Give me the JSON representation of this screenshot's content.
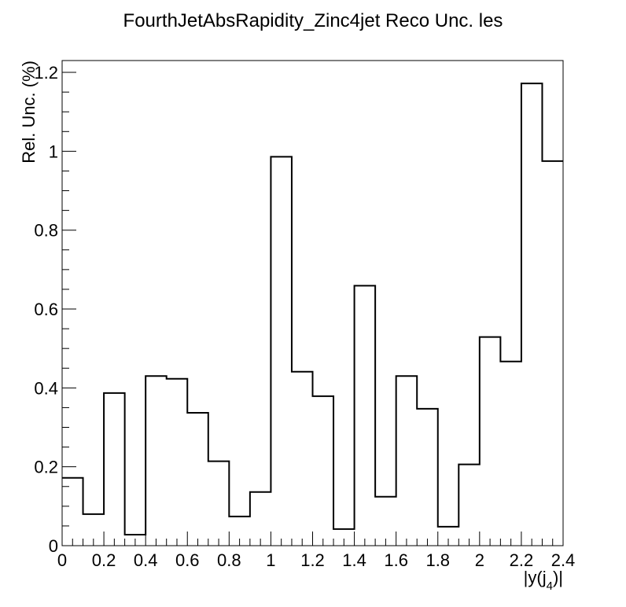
{
  "chart_data": {
    "type": "bar",
    "title": "FourthJetAbsRapidity_Zinc4jet Reco Unc. les",
    "xlabel_main": "|y(j",
    "xlabel_sub": "4",
    "xlabel_end": ")|",
    "ylabel": "Rel. Unc. (%)",
    "xlim": [
      0,
      2.4
    ],
    "ylim": [
      0,
      1.23
    ],
    "bin_edges": [
      0,
      0.1,
      0.2,
      0.3,
      0.4,
      0.5,
      0.6,
      0.7,
      0.8,
      0.9,
      1.0,
      1.1,
      1.2,
      1.3,
      1.4,
      1.5,
      1.6,
      1.7,
      1.8,
      1.9,
      2.0,
      2.1,
      2.2,
      2.3,
      2.4
    ],
    "values": [
      0.172,
      0.08,
      0.387,
      0.028,
      0.43,
      0.423,
      0.337,
      0.214,
      0.074,
      0.136,
      0.986,
      0.441,
      0.379,
      0.042,
      0.659,
      0.124,
      0.43,
      0.347,
      0.048,
      0.206,
      0.529,
      0.467,
      1.172,
      0.975
    ],
    "xticks": [
      {
        "v": 0,
        "label": "0"
      },
      {
        "v": 0.2,
        "label": "0.2"
      },
      {
        "v": 0.4,
        "label": "0.4"
      },
      {
        "v": 0.6,
        "label": "0.6"
      },
      {
        "v": 0.8,
        "label": "0.8"
      },
      {
        "v": 1.0,
        "label": "1"
      },
      {
        "v": 1.2,
        "label": "1.2"
      },
      {
        "v": 1.4,
        "label": "1.4"
      },
      {
        "v": 1.6,
        "label": "1.6"
      },
      {
        "v": 1.8,
        "label": "1.8"
      },
      {
        "v": 2.0,
        "label": "2"
      },
      {
        "v": 2.2,
        "label": "2.2"
      },
      {
        "v": 2.4,
        "label": "2.4"
      }
    ],
    "yticks": [
      {
        "v": 0,
        "label": "0"
      },
      {
        "v": 0.2,
        "label": "0.2"
      },
      {
        "v": 0.4,
        "label": "0.4"
      },
      {
        "v": 0.6,
        "label": "0.6"
      },
      {
        "v": 0.8,
        "label": "0.8"
      },
      {
        "v": 1.0,
        "label": "1"
      },
      {
        "v": 1.2,
        "label": "1.2"
      }
    ],
    "x_minor_step": 0.05,
    "y_minor_step": 0.05,
    "legend": "none",
    "grid": false,
    "line_color": "#000000"
  }
}
